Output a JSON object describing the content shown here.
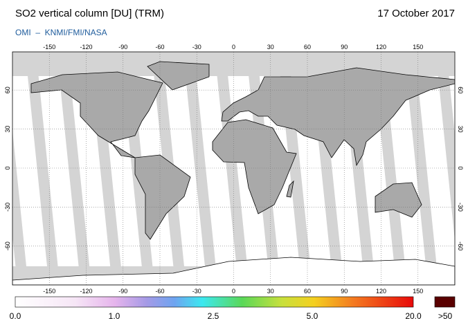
{
  "header": {
    "title": "SO2 vertical column [DU] (TRM)",
    "date": "17 October 2017",
    "subtitle": "OMI  –  KNMI/FMI/NASA"
  },
  "map": {
    "lon_ticks": [
      -150,
      -120,
      -90,
      -60,
      -30,
      0,
      30,
      60,
      90,
      120,
      150
    ],
    "lat_ticks": [
      60,
      30,
      0,
      -30,
      -60
    ]
  },
  "colorbar": {
    "labels": [
      "0.0",
      "1.0",
      "2.5",
      "5.0",
      "20.0"
    ],
    "overflow_label": ">50"
  }
}
